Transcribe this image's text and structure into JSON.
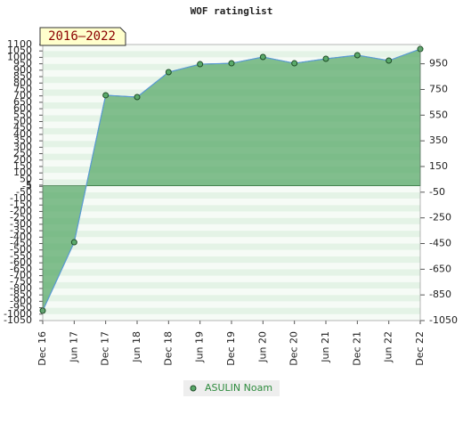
{
  "chart_data": {
    "type": "line",
    "title": "WOF ratinglist",
    "badge": "2016–2022",
    "categories": [
      "Dec 16",
      "Jun 17",
      "Dec 17",
      "Jun 18",
      "Dec 18",
      "Jun 19",
      "Dec 19",
      "Jun 20",
      "Dec 20",
      "Jun 21",
      "Dec 21",
      "Jun 22",
      "Dec 22"
    ],
    "series": [
      {
        "name": "ASULIN Noam",
        "color": "#5aaa6a",
        "line_color": "#5b9bd5",
        "values": [
          -973,
          -440,
          705,
          691,
          885,
          947,
          954,
          1003,
          954,
          989,
          1017,
          975,
          1065
        ]
      }
    ],
    "ylim": [
      -1050,
      1100
    ],
    "yticks": [
      1100,
      1050,
      1000,
      950,
      900,
      850,
      800,
      750,
      700,
      650,
      600,
      550,
      500,
      450,
      400,
      350,
      300,
      250,
      200,
      150,
      100,
      50,
      5,
      -5,
      -50,
      -100,
      -150,
      -200,
      -250,
      -300,
      -350,
      -400,
      -450,
      -500,
      -550,
      -600,
      -650,
      -700,
      -750,
      -800,
      -850,
      -900,
      -950,
      -1000,
      -1050
    ],
    "y2lim": [
      -1050,
      1100
    ],
    "y2ticks": [
      950,
      750,
      550,
      350,
      150,
      -50,
      -250,
      -450,
      -650,
      -850,
      -1050
    ],
    "legend": "bottom",
    "grid": true
  }
}
